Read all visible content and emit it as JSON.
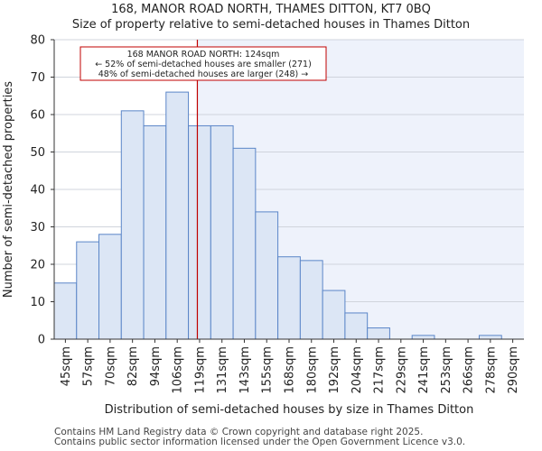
{
  "titles": {
    "line1": "168, MANOR ROAD NORTH, THAMES DITTON, KT7 0BQ",
    "line2": "Size of property relative to semi-detached houses in Thames Ditton"
  },
  "footer": {
    "line1": "Contains HM Land Registry data © Crown copyright and database right 2025.",
    "line2": "Contains public sector information licensed under the Open Government Licence v3.0."
  },
  "colors": {
    "bar_fill": "#dce6f5",
    "bar_edge": "#5b86c8",
    "marker": "#c00000",
    "highlight_bg": "#eef2fb"
  },
  "chart_data": {
    "type": "bar",
    "title": "Size of property relative to semi-detached houses in Thames Ditton",
    "xlabel": "Distribution of semi-detached houses by size in Thames Ditton",
    "ylabel": "Number of semi-detached properties",
    "ylim": [
      0,
      80
    ],
    "yticks": [
      0,
      10,
      20,
      30,
      40,
      50,
      60,
      70,
      80
    ],
    "categories": [
      "45sqm",
      "57sqm",
      "70sqm",
      "82sqm",
      "94sqm",
      "106sqm",
      "119sqm",
      "131sqm",
      "143sqm",
      "155sqm",
      "168sqm",
      "180sqm",
      "192sqm",
      "204sqm",
      "217sqm",
      "229sqm",
      "241sqm",
      "253sqm",
      "266sqm",
      "278sqm",
      "290sqm"
    ],
    "values": [
      15,
      26,
      28,
      61,
      57,
      66,
      57,
      57,
      51,
      34,
      22,
      21,
      13,
      7,
      3,
      0,
      1,
      0,
      0,
      1,
      0
    ],
    "marker_value_sqm": 124,
    "marker_position_bins": 6.4,
    "annotation": {
      "line1": "168 MANOR ROAD NORTH: 124sqm",
      "line2": "← 52% of semi-detached houses are smaller (271)",
      "line3": "48% of semi-detached houses are larger (248) →"
    }
  }
}
